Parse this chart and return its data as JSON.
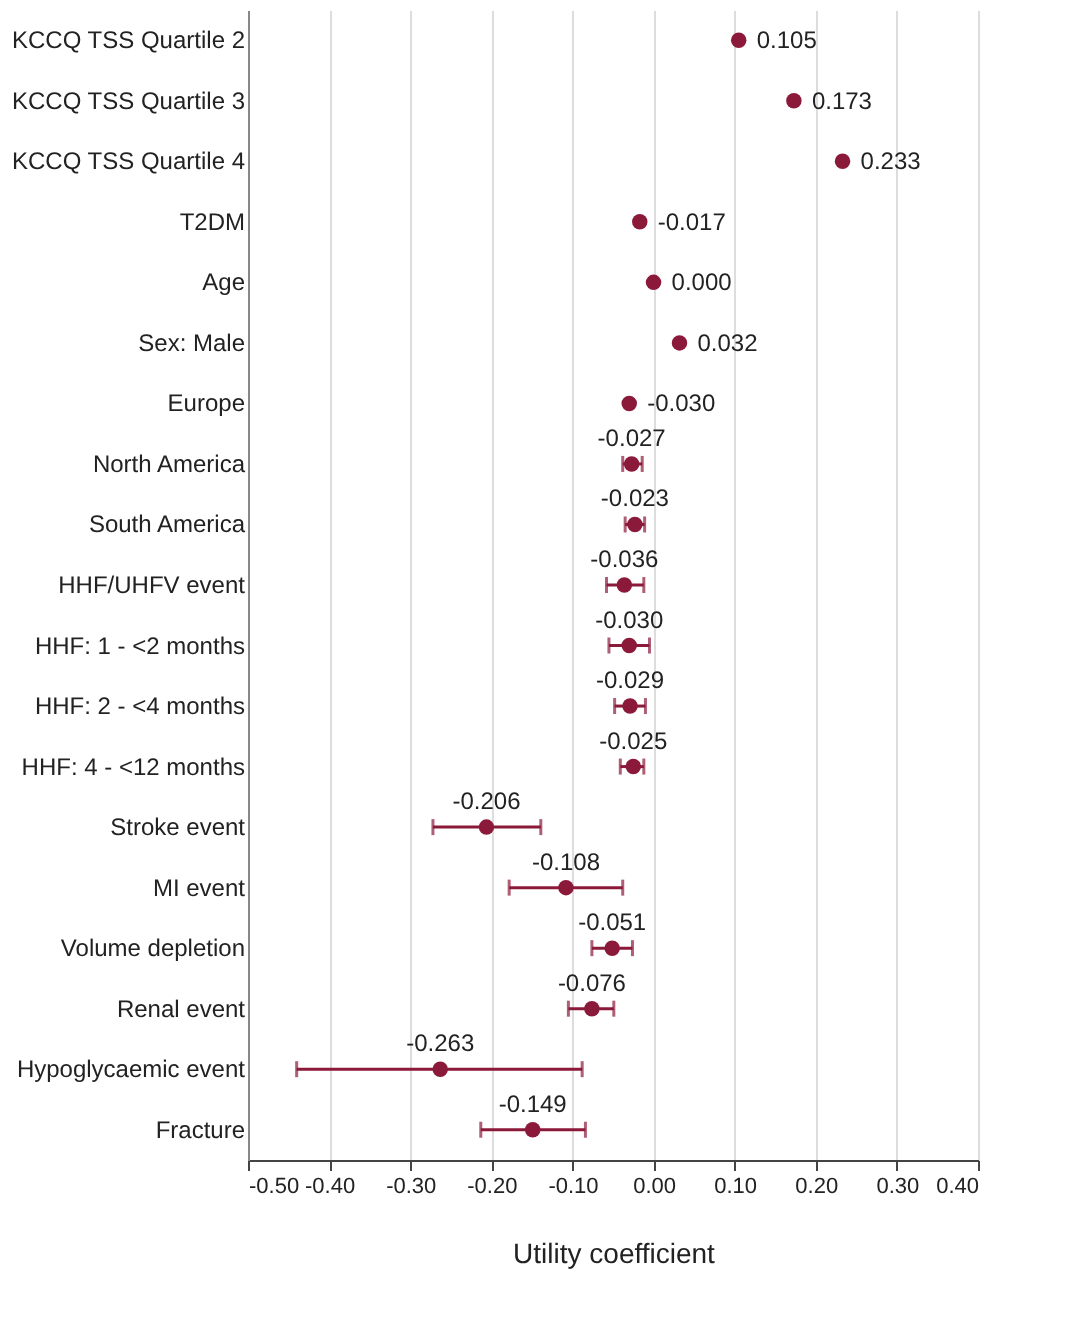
{
  "chart_data": {
    "type": "scatter",
    "orientation": "horizontal",
    "xlabel": "Utility coefficient",
    "categories": [
      "KCCQ TSS Quartile 2",
      "KCCQ TSS Quartile 3",
      "KCCQ TSS Quartile 4",
      "T2DM",
      "Age",
      "Sex: Male",
      "Europe",
      "North America",
      "South America",
      "HHF/UHFV event",
      "HHF: 1 - <2 months",
      "HHF: 2 - <4 months",
      "HHF: 4 - <12 months",
      "Stroke event",
      "MI event",
      "Volume depletion",
      "Renal event",
      "Hypoglycaemic event",
      "Fracture"
    ],
    "values": [
      0.105,
      0.173,
      0.233,
      -0.017,
      0.0,
      0.032,
      -0.03,
      -0.027,
      -0.023,
      -0.036,
      -0.03,
      -0.029,
      -0.025,
      -0.206,
      -0.108,
      -0.051,
      -0.076,
      -0.263,
      -0.149
    ],
    "errors": [
      null,
      null,
      null,
      null,
      null,
      null,
      null,
      [
        -0.038,
        -0.014
      ],
      [
        -0.035,
        -0.011
      ],
      [
        -0.058,
        -0.012
      ],
      [
        -0.055,
        -0.005
      ],
      [
        -0.048,
        -0.01
      ],
      [
        -0.041,
        -0.012
      ],
      [
        -0.272,
        -0.139
      ],
      [
        -0.178,
        -0.038
      ],
      [
        -0.076,
        -0.026
      ],
      [
        -0.105,
        -0.049
      ],
      [
        -0.44,
        -0.088
      ],
      [
        -0.213,
        -0.084
      ]
    ],
    "value_labels": [
      "0.105",
      "0.173",
      "0.233",
      "-0.017",
      "0.000",
      "0.032",
      "-0.030",
      "-0.027",
      "-0.023",
      "-0.036",
      "-0.030",
      "-0.029",
      "-0.025",
      "-0.206",
      "-0.108",
      "-0.051",
      "-0.076",
      "-0.263",
      "-0.149"
    ],
    "color": "#8b1a3a",
    "marker": "circle",
    "grid": "x",
    "xlim": [
      -0.5,
      0.4
    ],
    "xticks": [
      {
        "value": -0.5,
        "label": "-0.50"
      },
      {
        "value": -0.4,
        "label": "-0.40"
      },
      {
        "value": -0.3,
        "label": "-0.30"
      },
      {
        "value": -0.2,
        "label": "-0.20"
      },
      {
        "value": -0.1,
        "label": "-0.10"
      },
      {
        "value": 0,
        "label": "0.00"
      },
      {
        "value": 0.1,
        "label": "0.10"
      },
      {
        "value": 0.2,
        "label": "0.20"
      },
      {
        "value": 0.3,
        "label": "0.30"
      },
      {
        "value": 0.4,
        "label": "0.40"
      }
    ]
  }
}
